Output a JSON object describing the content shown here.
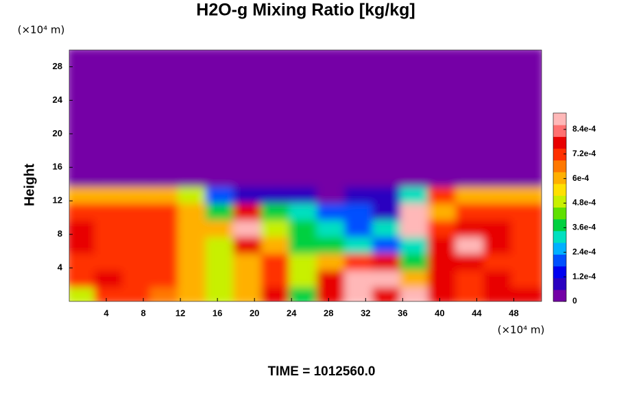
{
  "chart_data": {
    "type": "heatmap",
    "title": "H2O-g Mixing Ratio [kg/kg]",
    "y_label": "Height",
    "x_unit": "(×10⁴ m)",
    "y_unit": "(×10⁴ m)",
    "footer": "TIME = 1012560.0",
    "xlim": [
      0,
      51
    ],
    "ylim": [
      0,
      30
    ],
    "xticks": [
      4,
      8,
      12,
      16,
      20,
      24,
      28,
      32,
      36,
      40,
      44,
      48
    ],
    "yticks": [
      4,
      8,
      12,
      16,
      20,
      24,
      28
    ],
    "x_edges": [
      0,
      3,
      6,
      9,
      12,
      15,
      18,
      21,
      24,
      27,
      30,
      33,
      36,
      39,
      42,
      45,
      48,
      51
    ],
    "y_edges": [
      0,
      2,
      4,
      6,
      8,
      10,
      12,
      14,
      30
    ],
    "z": [
      [
        0.0005,
        0.0007,
        0.0007,
        0.00065,
        0.0006,
        0.0005,
        0.0006,
        0.0008,
        0.0004,
        0.0008,
        0.0009,
        0.0008,
        0.0009,
        0.0008,
        0.0007,
        0.0008,
        0.0008
      ],
      [
        0.0007,
        0.0008,
        0.0007,
        0.0007,
        0.0006,
        0.0005,
        0.0006,
        0.0007,
        0.0005,
        0.0008,
        0.0009,
        0.0009,
        0.0006,
        0.0008,
        0.0007,
        0.0008,
        0.0007
      ],
      [
        0.0007,
        0.0007,
        0.0007,
        0.0007,
        0.0006,
        0.0005,
        0.0006,
        0.0007,
        0.0005,
        0.0006,
        0.0007,
        0.0008,
        0.0004,
        0.0008,
        0.0008,
        0.0007,
        0.0007
      ],
      [
        0.0008,
        0.0007,
        0.0007,
        0.0007,
        0.0006,
        0.0005,
        0.0008,
        0.0006,
        0.0004,
        0.0004,
        0.0003,
        0.0002,
        0.0003,
        0.0008,
        0.0009,
        0.0008,
        0.0007
      ],
      [
        0.0008,
        0.0007,
        0.0007,
        0.0007,
        0.0006,
        0.0006,
        0.0009,
        0.0005,
        0.0004,
        0.0003,
        0.0002,
        0.0003,
        0.0009,
        0.0007,
        0.0008,
        0.0008,
        0.0007
      ],
      [
        0.0007,
        0.0007,
        0.0007,
        0.0007,
        0.0006,
        0.0004,
        0.0008,
        0.0004,
        0.0003,
        0.0002,
        0.0002,
        0.0001,
        0.0009,
        0.0006,
        0.0007,
        0.0007,
        0.0007
      ],
      [
        0.0006,
        0.0006,
        0.0006,
        0.0006,
        0.0005,
        0.0002,
        0.0001,
        0.0001,
        0.0001,
        5e-05,
        0.0001,
        0.0001,
        0.0003,
        0.0007,
        0.0006,
        0.0006,
        0.0006
      ],
      [
        0,
        0,
        0,
        0,
        0,
        0,
        0,
        0,
        0,
        0,
        0,
        0,
        0,
        0,
        0,
        0,
        0
      ]
    ],
    "zlim": [
      0,
      0.00092
    ],
    "colorbar_ticks": [
      0,
      {
        "value": 0.00012,
        "label": "1.2e-4"
      },
      {
        "value": 0.00024,
        "label": "2.4e-4"
      },
      {
        "value": 0.00036,
        "label": "3.6e-4"
      },
      {
        "value": 0.00048,
        "label": "4.8e-4"
      },
      {
        "value": 0.0006,
        "label": "6e-4"
      },
      {
        "value": 0.00072,
        "label": "7.2e-4"
      },
      {
        "value": 0.00084,
        "label": "8.4e-4"
      }
    ],
    "colormap": [
      "#7400a6",
      "#2a00c0",
      "#0000f0",
      "#0050ff",
      "#00b0ff",
      "#00e0c0",
      "#00d040",
      "#60e000",
      "#c8f000",
      "#ffe000",
      "#ffb000",
      "#ff7800",
      "#ff3000",
      "#e80000",
      "#ff7070",
      "#ffb8b8"
    ]
  }
}
